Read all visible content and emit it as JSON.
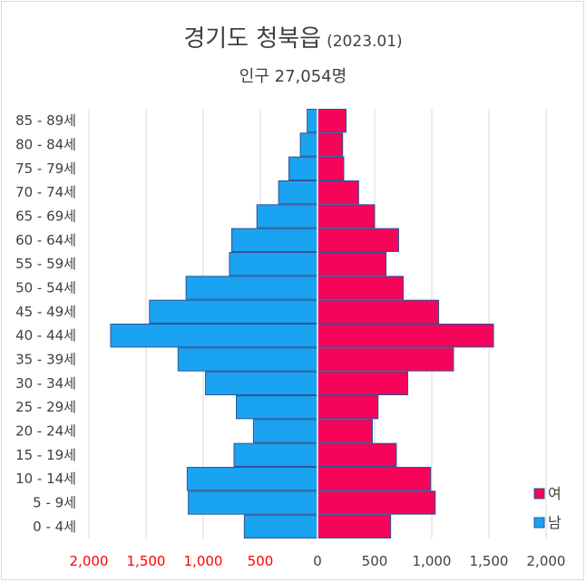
{
  "header": {
    "title": "경기도 청북읍",
    "date": "(2023.01)",
    "subtitle": "인구 27,054명"
  },
  "chart_data": {
    "type": "bar",
    "orientation": "horizontal-population-pyramid",
    "categories": [
      "0 - 4세",
      "5 - 9세",
      "10 - 14세",
      "15 - 19세",
      "20 - 24세",
      "25 - 29세",
      "30 - 34세",
      "35 - 39세",
      "40 - 44세",
      "45 - 49세",
      "50 - 54세",
      "55 - 59세",
      "60 - 64세",
      "65 - 69세",
      "70 - 74세",
      "75 - 79세",
      "80 - 84세",
      "85 - 89세"
    ],
    "series": [
      {
        "name": "남",
        "color": "#1aa3f0",
        "values": [
          640,
          1130,
          1140,
          730,
          560,
          710,
          980,
          1220,
          1810,
          1470,
          1150,
          770,
          750,
          530,
          340,
          250,
          150,
          90
        ]
      },
      {
        "name": "여",
        "color": "#f5045a",
        "values": [
          640,
          1030,
          990,
          690,
          480,
          530,
          790,
          1190,
          1540,
          1060,
          750,
          600,
          710,
          500,
          360,
          230,
          220,
          250
        ]
      }
    ],
    "xlim": [
      -2000,
      2000
    ],
    "xticks": [
      {
        "value": -2000,
        "label": "2,000",
        "color": "#ff0000"
      },
      {
        "value": -1500,
        "label": "1,500",
        "color": "#ff0000"
      },
      {
        "value": -1000,
        "label": "1,000",
        "color": "#ff0000"
      },
      {
        "value": -500,
        "label": "500",
        "color": "#ff0000"
      },
      {
        "value": 0,
        "label": "0",
        "color": "#404040"
      },
      {
        "value": 500,
        "label": "500",
        "color": "#404040"
      },
      {
        "value": 1000,
        "label": "1,000",
        "color": "#404040"
      },
      {
        "value": 1500,
        "label": "1,500",
        "color": "#404040"
      },
      {
        "value": 2000,
        "label": "2,000",
        "color": "#404040"
      }
    ],
    "grid": true,
    "legend": {
      "position": "right-bottom",
      "items": [
        {
          "label": "여",
          "color": "#f5045a"
        },
        {
          "label": "남",
          "color": "#1aa3f0"
        }
      ]
    }
  }
}
